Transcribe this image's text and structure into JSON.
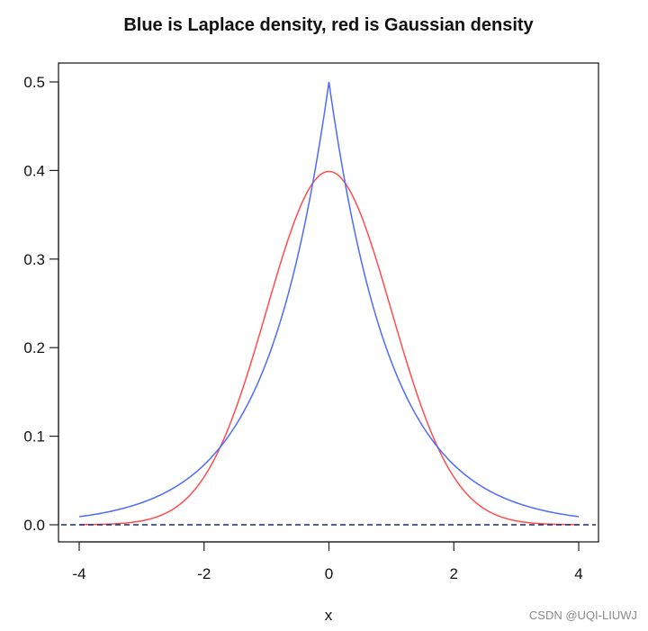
{
  "chart_data": {
    "type": "line",
    "title": "Blue is Laplace density, red is Gaussian density",
    "xlabel": "x",
    "ylabel": "",
    "xlim": [
      -4,
      4
    ],
    "ylim": [
      0,
      0.5
    ],
    "x_ticks": [
      "-4",
      "-2",
      "0",
      "2",
      "4"
    ],
    "y_ticks": [
      "0.0",
      "0.1",
      "0.2",
      "0.3",
      "0.4",
      "0.5"
    ],
    "grid": false,
    "legend": "none",
    "reference_line": {
      "y": 0,
      "style": "dashed",
      "color": "#1a2a6c"
    },
    "series": [
      {
        "color": "#ff4d4d",
        "x": [
          -4,
          -3.5,
          -3,
          -2.5,
          -2,
          -1.75,
          -1.5,
          -1.25,
          -1,
          -0.75,
          -0.5,
          -0.25,
          0,
          0.25,
          0.5,
          0.75,
          1,
          1.25,
          1.5,
          1.75,
          2,
          2.5,
          3,
          3.5,
          4
        ],
        "y": [
          0.0001,
          0.0009,
          0.0044,
          0.0175,
          0.054,
          0.0863,
          0.1295,
          0.1826,
          0.242,
          0.3011,
          0.3521,
          0.3867,
          0.3989,
          0.3867,
          0.3521,
          0.3011,
          0.242,
          0.1826,
          0.1295,
          0.0863,
          0.054,
          0.0175,
          0.0044,
          0.0009,
          0.0001
        ]
      },
      {
        "color": "#4d6bff",
        "x": [
          -4,
          -3.5,
          -3,
          -2.5,
          -2,
          -1.75,
          -1.5,
          -1.25,
          -1,
          -0.75,
          -0.5,
          -0.25,
          0,
          0.25,
          0.5,
          0.75,
          1,
          1.25,
          1.5,
          1.75,
          2,
          2.5,
          3,
          3.5,
          4
        ],
        "y": [
          0.0092,
          0.0151,
          0.0249,
          0.041,
          0.0677,
          0.0869,
          0.1116,
          0.1433,
          0.1839,
          0.2362,
          0.3033,
          0.3894,
          0.5,
          0.3894,
          0.3033,
          0.2362,
          0.1839,
          0.1433,
          0.1116,
          0.0869,
          0.0677,
          0.041,
          0.0249,
          0.0151,
          0.0092
        ]
      }
    ]
  },
  "watermark": "CSDN @UQI-LIUWJ"
}
